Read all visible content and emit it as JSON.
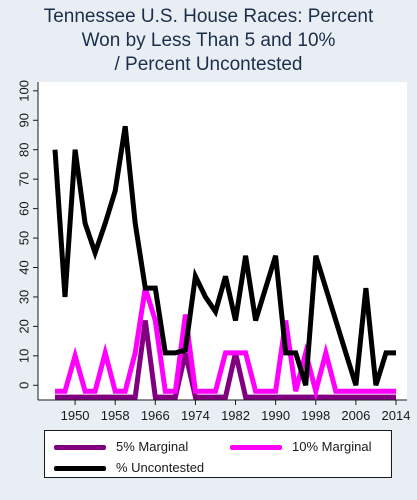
{
  "chart_data": {
    "type": "line",
    "title_lines": [
      "Tennessee U.S. House Races: Percent",
      "Won by Less Than 5 and 10%",
      "/ Percent Uncontested"
    ],
    "xlabel": "",
    "ylabel": "",
    "x_ticks": [
      1950,
      1958,
      1966,
      1974,
      1982,
      1990,
      1998,
      2006,
      2014
    ],
    "y_ticks": [
      0,
      10,
      20,
      30,
      40,
      50,
      60,
      70,
      80,
      90,
      100
    ],
    "xlim": [
      1945,
      2015
    ],
    "ylim": [
      -5,
      103
    ],
    "grid": false,
    "legend_position": "bottom",
    "x": [
      1946,
      1948,
      1950,
      1952,
      1954,
      1956,
      1958,
      1960,
      1962,
      1964,
      1966,
      1968,
      1970,
      1972,
      1974,
      1976,
      1978,
      1980,
      1982,
      1984,
      1986,
      1988,
      1990,
      1992,
      1994,
      1996,
      1998,
      2000,
      2002,
      2004,
      2006,
      2008,
      2010,
      2012,
      2014
    ],
    "series": [
      {
        "name": "5% Marginal",
        "color": "#800080",
        "values": [
          -4,
          -4,
          -4,
          -4,
          -4,
          -4,
          -4,
          -4,
          -4,
          22,
          -4,
          -4,
          -4,
          11,
          -4,
          -4,
          -4,
          -4,
          11,
          -4,
          -4,
          -4,
          -4,
          -4,
          -4,
          -4,
          -4,
          -4,
          -4,
          -4,
          -4,
          -4,
          -4,
          -4,
          -4
        ]
      },
      {
        "name": "10% Marginal",
        "color": "#ff00ff",
        "values": [
          -2,
          -2,
          10,
          -2,
          -2,
          11,
          -2,
          -2,
          11,
          33,
          22,
          -2,
          -2,
          24,
          -2,
          -2,
          -2,
          11,
          11,
          11,
          -2,
          -2,
          -2,
          22,
          -2,
          11,
          -2,
          11,
          -2,
          -2,
          -2,
          -2,
          -2,
          -2,
          -2
        ]
      },
      {
        "name": "% Uncontested",
        "color": "#000000",
        "values": [
          80,
          30,
          80,
          55,
          45,
          55,
          66,
          88,
          55,
          33,
          33,
          11,
          11,
          12,
          37,
          30,
          25,
          37,
          22,
          44,
          22,
          33,
          44,
          11,
          11,
          0,
          44,
          33,
          22,
          11,
          0,
          33,
          0,
          11,
          11
        ]
      }
    ]
  }
}
